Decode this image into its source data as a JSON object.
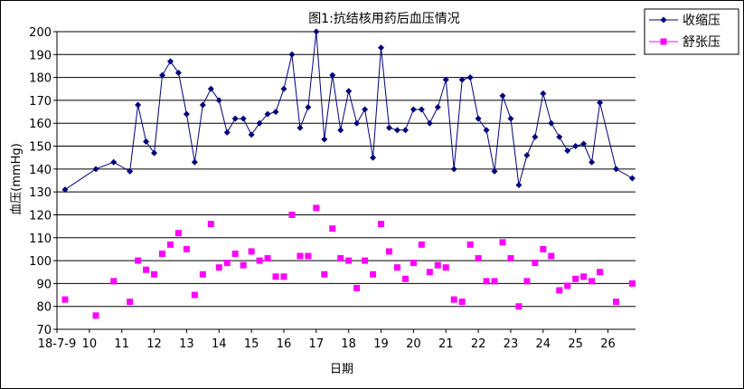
{
  "chart_data": {
    "type": "line",
    "title": "图1:抗结核用药后血压情况",
    "xlabel": "日期",
    "ylabel": "血压(mmHg)",
    "ylim": [
      70,
      200
    ],
    "ytick_step": 10,
    "xlim": [
      9,
      26.85
    ],
    "xticks": [
      {
        "value": 9,
        "label": "18-7-9"
      },
      {
        "value": 10,
        "label": "10"
      },
      {
        "value": 11,
        "label": "11"
      },
      {
        "value": 12,
        "label": "12"
      },
      {
        "value": 13,
        "label": "13"
      },
      {
        "value": 14,
        "label": "14"
      },
      {
        "value": 15,
        "label": "15"
      },
      {
        "value": 16,
        "label": "16"
      },
      {
        "value": 17,
        "label": "17"
      },
      {
        "value": 18,
        "label": "18"
      },
      {
        "value": 19,
        "label": "19"
      },
      {
        "value": 20,
        "label": "20"
      },
      {
        "value": 21,
        "label": "21"
      },
      {
        "value": 22,
        "label": "22"
      },
      {
        "value": 23,
        "label": "23"
      },
      {
        "value": 24,
        "label": "24"
      },
      {
        "value": 25,
        "label": "25"
      },
      {
        "value": 26,
        "label": "26"
      }
    ],
    "grid": "horizontal",
    "legend_position": "top-right",
    "x": [
      9.25,
      10.2,
      10.75,
      11.25,
      11.5,
      11.75,
      12.0,
      12.25,
      12.5,
      12.75,
      13.0,
      13.25,
      13.5,
      13.75,
      14.0,
      14.25,
      14.5,
      14.75,
      15.0,
      15.25,
      15.5,
      15.75,
      16.0,
      16.25,
      16.5,
      16.75,
      17.0,
      17.25,
      17.5,
      17.75,
      18.0,
      18.25,
      18.5,
      18.75,
      19.0,
      19.25,
      19.5,
      19.75,
      20.0,
      20.25,
      20.5,
      20.75,
      21.0,
      21.25,
      21.5,
      21.75,
      22.0,
      22.25,
      22.5,
      22.75,
      23.0,
      23.25,
      23.5,
      23.75,
      24.0,
      24.25,
      24.5,
      24.75,
      25.0,
      25.25,
      25.5,
      25.75,
      26.25,
      26.75
    ],
    "series": [
      {
        "name": "收缩压",
        "color": "#00007F",
        "marker": "diamond",
        "values": [
          131,
          140,
          143,
          139,
          168,
          152,
          147,
          181,
          187,
          182,
          164,
          143,
          168,
          175,
          170,
          156,
          162,
          162,
          155,
          160,
          164,
          165,
          175,
          190,
          158,
          167,
          200,
          153,
          181,
          157,
          174,
          160,
          166,
          145,
          193,
          158,
          157,
          157,
          166,
          166,
          160,
          167,
          179,
          140,
          179,
          180,
          162,
          157,
          139,
          172,
          162,
          133,
          146,
          154,
          173,
          160,
          154,
          148,
          150,
          151,
          143,
          169,
          140,
          136
        ]
      },
      {
        "name": "舒张压",
        "color": "#FF00FF",
        "marker": "square",
        "values": [
          83,
          76,
          91,
          82,
          100,
          96,
          94,
          103,
          107,
          112,
          105,
          85,
          94,
          116,
          97,
          99,
          103,
          98,
          104,
          100,
          101,
          93,
          93,
          120,
          102,
          102,
          123,
          94,
          114,
          101,
          100,
          88,
          100,
          94,
          116,
          104,
          97,
          92,
          99,
          107,
          95,
          98,
          97,
          83,
          82,
          107,
          101,
          91,
          91,
          108,
          101,
          80,
          91,
          99,
          105,
          102,
          87,
          89,
          92,
          93,
          91,
          95,
          82,
          90
        ]
      }
    ]
  }
}
